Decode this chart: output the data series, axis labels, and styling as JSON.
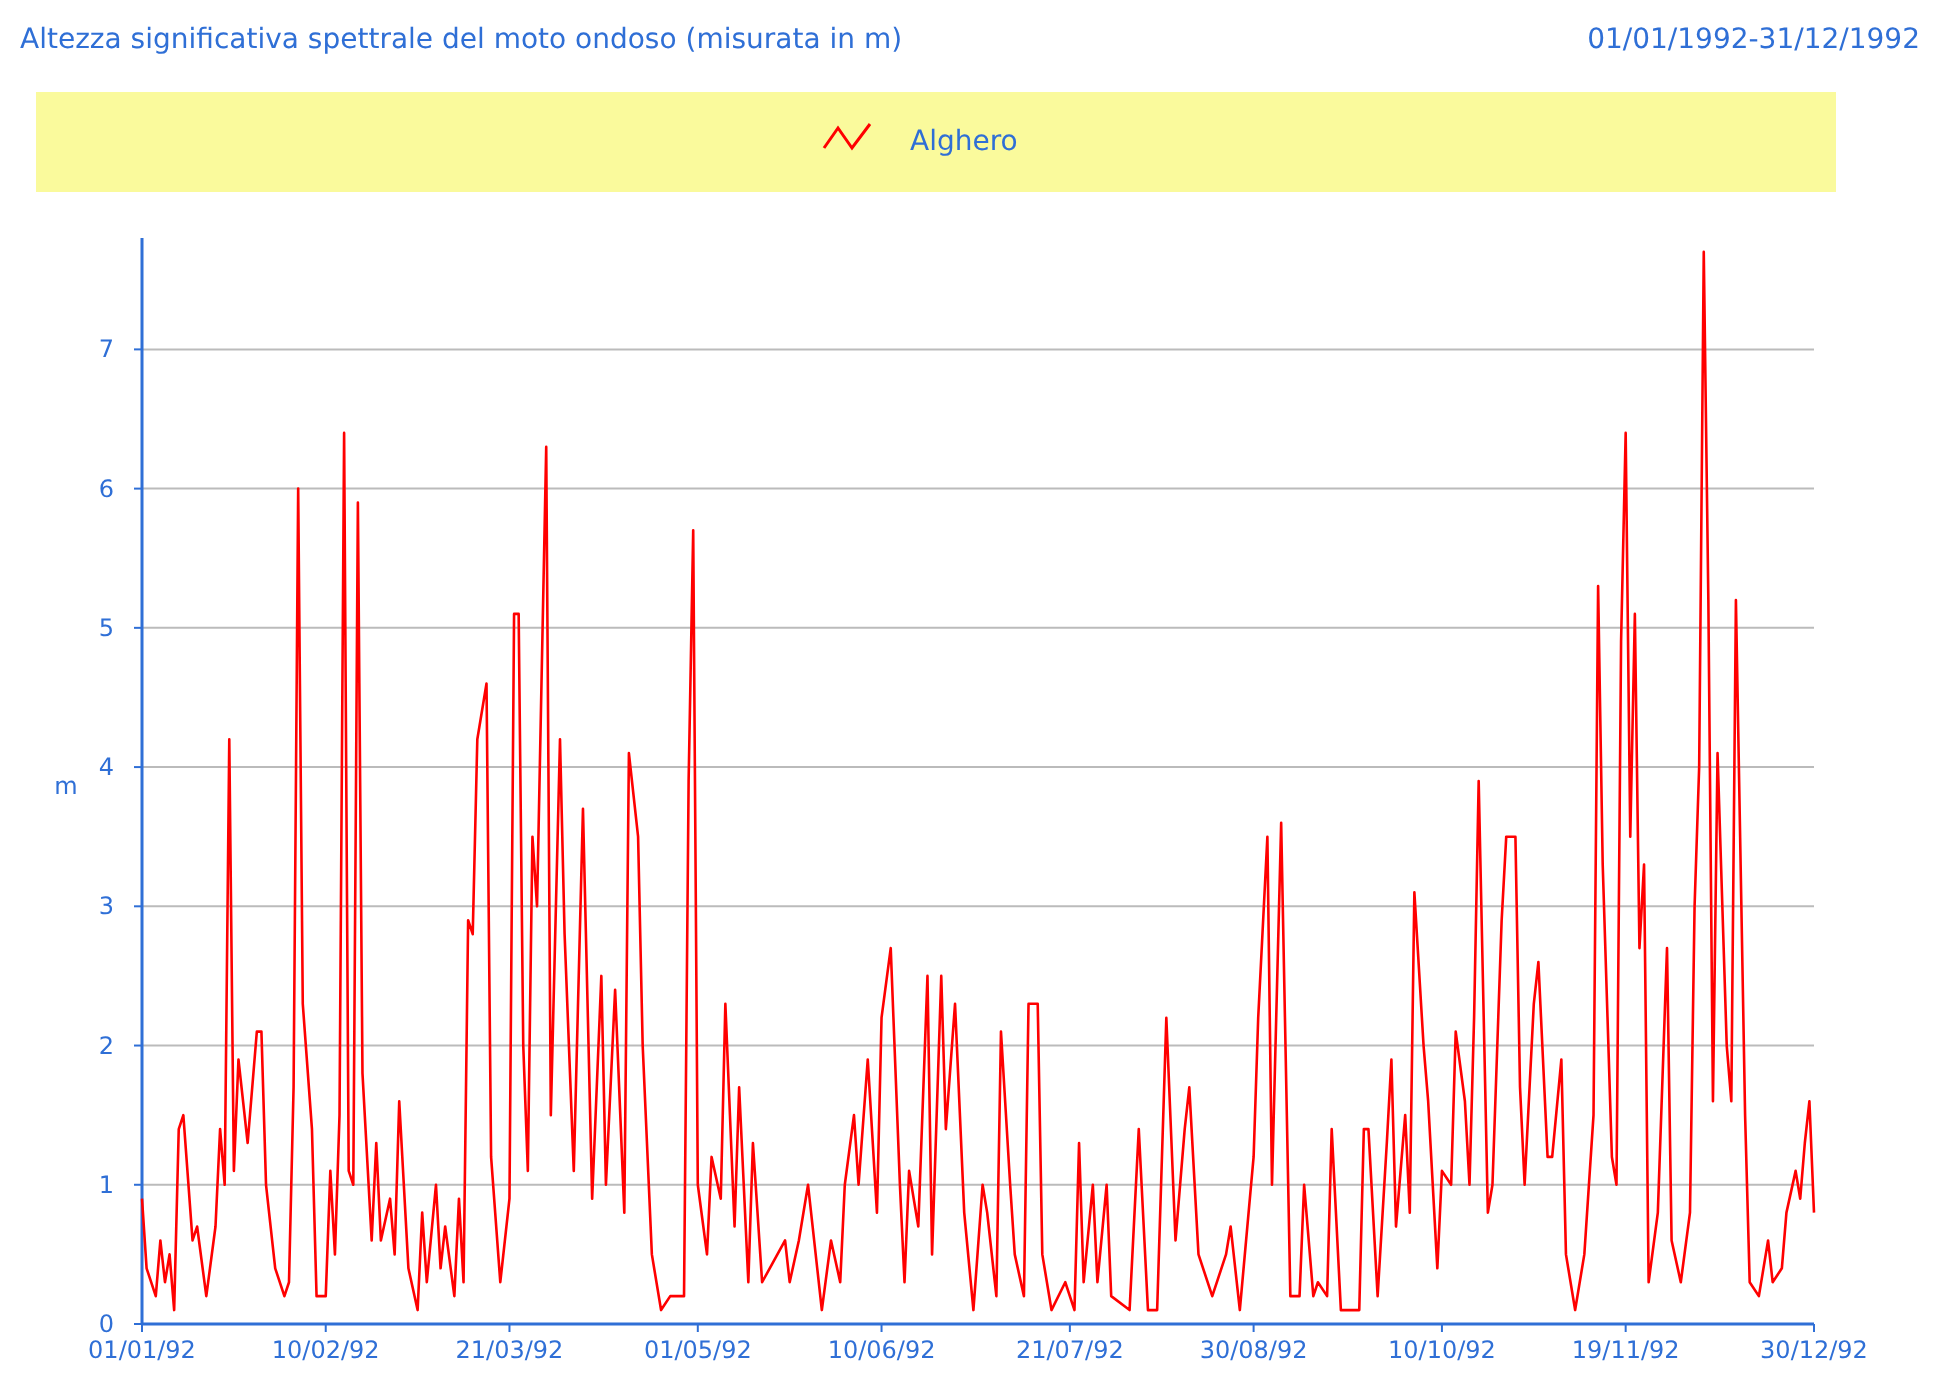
{
  "chart_data": {
    "type": "line",
    "title": "Altezza significativa spettrale del moto ondoso (misurata in m)",
    "subtitle": "01/01/1992-31/12/1992",
    "ylabel": "m",
    "xlim": [
      "1992-01-01",
      "1992-12-30"
    ],
    "xticks": [
      {
        "value": "1992-01-01",
        "label": "01/01/92"
      },
      {
        "value": "1992-02-10",
        "label": "10/02/92"
      },
      {
        "value": "1992-03-21",
        "label": "21/03/92"
      },
      {
        "value": "1992-05-01",
        "label": "01/05/92"
      },
      {
        "value": "1992-06-10",
        "label": "10/06/92"
      },
      {
        "value": "1992-07-21",
        "label": "21/07/92"
      },
      {
        "value": "1992-08-30",
        "label": "30/08/92"
      },
      {
        "value": "1992-10-10",
        "label": "10/10/92"
      },
      {
        "value": "1992-11-19",
        "label": "19/11/92"
      },
      {
        "value": "1992-12-30",
        "label": "30/12/92"
      }
    ],
    "ylim": [
      0,
      7.8
    ],
    "yticks": [
      0,
      1,
      2,
      3,
      4,
      5,
      6,
      7
    ],
    "grid": "y",
    "legend": "top",
    "marker": "none",
    "line_style": "solid",
    "x": [
      "1992-01-01",
      "1992-01-02",
      "1992-01-04",
      "1992-01-05",
      "1992-01-06",
      "1992-01-07",
      "1992-01-08",
      "1992-01-09",
      "1992-01-10",
      "1992-01-12",
      "1992-01-13",
      "1992-01-15",
      "1992-01-17",
      "1992-01-18",
      "1992-01-19",
      "1992-01-20",
      "1992-01-21",
      "1992-01-22",
      "1992-01-24",
      "1992-01-26",
      "1992-01-27",
      "1992-01-28",
      "1992-01-30",
      "1992-02-01",
      "1992-02-02",
      "1992-02-03",
      "1992-02-04",
      "1992-02-05",
      "1992-02-07",
      "1992-02-08",
      "1992-02-10",
      "1992-02-11",
      "1992-02-12",
      "1992-02-13",
      "1992-02-14",
      "1992-02-15",
      "1992-02-16",
      "1992-02-17",
      "1992-02-18",
      "1992-02-20",
      "1992-02-21",
      "1992-02-22",
      "1992-02-24",
      "1992-02-25",
      "1992-02-26",
      "1992-02-28",
      "1992-03-01",
      "1992-03-02",
      "1992-03-03",
      "1992-03-05",
      "1992-03-06",
      "1992-03-07",
      "1992-03-09",
      "1992-03-10",
      "1992-03-11",
      "1992-03-12",
      "1992-03-13",
      "1992-03-14",
      "1992-03-16",
      "1992-03-17",
      "1992-03-19",
      "1992-03-21",
      "1992-03-22",
      "1992-03-23",
      "1992-03-24",
      "1992-03-25",
      "1992-03-26",
      "1992-03-27",
      "1992-03-29",
      "1992-03-30",
      "1992-04-01",
      "1992-04-02",
      "1992-04-04",
      "1992-04-06",
      "1992-04-08",
      "1992-04-10",
      "1992-04-11",
      "1992-04-13",
      "1992-04-15",
      "1992-04-16",
      "1992-04-18",
      "1992-04-19",
      "1992-04-21",
      "1992-04-23",
      "1992-04-25",
      "1992-04-28",
      "1992-04-29",
      "1992-04-30",
      "1992-05-01",
      "1992-05-03",
      "1992-05-04",
      "1992-05-06",
      "1992-05-07",
      "1992-05-09",
      "1992-05-10",
      "1992-05-12",
      "1992-05-13",
      "1992-05-15",
      "1992-05-20",
      "1992-05-21",
      "1992-05-23",
      "1992-05-25",
      "1992-05-27",
      "1992-05-28",
      "1992-05-30",
      "1992-06-01",
      "1992-06-02",
      "1992-06-04",
      "1992-06-05",
      "1992-06-07",
      "1992-06-09",
      "1992-06-10",
      "1992-06-12",
      "1992-06-14",
      "1992-06-15",
      "1992-06-16",
      "1992-06-18",
      "1992-06-20",
      "1992-06-21",
      "1992-06-23",
      "1992-06-24",
      "1992-06-26",
      "1992-06-28",
      "1992-06-30",
      "1992-07-02",
      "1992-07-03",
      "1992-07-05",
      "1992-07-06",
      "1992-07-08",
      "1992-07-09",
      "1992-07-11",
      "1992-07-12",
      "1992-07-14",
      "1992-07-15",
      "1992-07-17",
      "1992-07-20",
      "1992-07-22",
      "1992-07-23",
      "1992-07-24",
      "1992-07-26",
      "1992-07-27",
      "1992-07-29",
      "1992-07-30",
      "1992-08-03",
      "1992-08-05",
      "1992-08-07",
      "1992-08-09",
      "1992-08-11",
      "1992-08-13",
      "1992-08-15",
      "1992-08-16",
      "1992-08-18",
      "1992-08-21",
      "1992-08-24",
      "1992-08-25",
      "1992-08-27",
      "1992-08-30",
      "1992-08-31",
      "1992-09-02",
      "1992-09-03",
      "1992-09-05",
      "1992-09-07",
      "1992-09-09",
      "1992-09-10",
      "1992-09-12",
      "1992-09-13",
      "1992-09-15",
      "1992-09-16",
      "1992-09-18",
      "1992-09-20",
      "1992-09-22",
      "1992-09-23",
      "1992-09-24",
      "1992-09-26",
      "1992-09-28",
      "1992-09-29",
      "1992-09-30",
      "1992-10-02",
      "1992-10-03",
      "1992-10-04",
      "1992-10-06",
      "1992-10-07",
      "1992-10-09",
      "1992-10-10",
      "1992-10-12",
      "1992-10-13",
      "1992-10-15",
      "1992-10-16",
      "1992-10-17",
      "1992-10-18",
      "1992-10-20",
      "1992-10-21",
      "1992-10-23",
      "1992-10-24",
      "1992-10-26",
      "1992-10-27",
      "1992-10-28",
      "1992-10-30",
      "1992-10-31",
      "1992-11-02",
      "1992-11-03",
      "1992-11-05",
      "1992-11-06",
      "1992-11-08",
      "1992-11-10",
      "1992-11-12",
      "1992-11-13",
      "1992-11-14",
      "1992-11-16",
      "1992-11-17",
      "1992-11-18",
      "1992-11-19",
      "1992-11-20",
      "1992-11-21",
      "1992-11-22",
      "1992-11-23",
      "1992-11-24",
      "1992-11-26",
      "1992-11-28",
      "1992-11-29",
      "1992-12-01",
      "1992-12-03",
      "1992-12-04",
      "1992-12-05",
      "1992-12-06",
      "1992-12-07",
      "1992-12-08",
      "1992-12-09",
      "1992-12-11",
      "1992-12-12",
      "1992-12-13",
      "1992-12-15",
      "1992-12-16",
      "1992-12-18",
      "1992-12-20",
      "1992-12-21",
      "1992-12-23",
      "1992-12-24",
      "1992-12-26",
      "1992-12-27",
      "1992-12-28",
      "1992-12-29",
      "1992-12-30"
    ],
    "series": [
      {
        "name": "Alghero",
        "color": "#ff0000",
        "values": [
          0.9,
          0.4,
          0.2,
          0.6,
          0.3,
          0.5,
          0.1,
          1.4,
          1.5,
          0.6,
          0.7,
          0.2,
          0.7,
          1.4,
          1.0,
          4.2,
          1.1,
          1.9,
          1.3,
          2.1,
          2.1,
          1.0,
          0.4,
          0.2,
          0.3,
          1.7,
          6.0,
          2.3,
          1.4,
          0.2,
          0.2,
          1.1,
          0.5,
          1.5,
          6.4,
          1.1,
          1.0,
          5.9,
          1.8,
          0.6,
          1.3,
          0.6,
          0.9,
          0.5,
          1.6,
          0.4,
          0.1,
          0.8,
          0.3,
          1.0,
          0.4,
          0.7,
          0.2,
          0.9,
          0.3,
          2.9,
          2.8,
          4.2,
          4.6,
          1.2,
          0.3,
          0.9,
          5.1,
          5.1,
          2.0,
          1.1,
          3.5,
          3.0,
          6.3,
          1.5,
          4.2,
          2.8,
          1.1,
          3.7,
          0.9,
          2.5,
          1.0,
          2.4,
          0.8,
          4.1,
          3.5,
          2.0,
          0.5,
          0.1,
          0.2,
          0.2,
          3.9,
          5.7,
          1.0,
          0.5,
          1.2,
          0.9,
          2.3,
          0.7,
          1.7,
          0.3,
          1.3,
          0.3,
          0.6,
          0.3,
          0.6,
          1.0,
          0.4,
          0.1,
          0.6,
          0.3,
          1.0,
          1.5,
          1.0,
          1.9,
          0.8,
          2.2,
          2.7,
          1.0,
          0.3,
          1.1,
          0.7,
          2.5,
          0.5,
          2.5,
          1.4,
          2.3,
          0.8,
          0.1,
          1.0,
          0.8,
          0.2,
          2.1,
          1.0,
          0.5,
          0.2,
          2.3,
          2.3,
          0.5,
          0.1,
          0.3,
          0.1,
          1.3,
          0.3,
          1.0,
          0.3,
          1.0,
          0.2,
          0.1,
          1.4,
          0.1,
          0.1,
          2.2,
          0.6,
          1.4,
          1.7,
          0.5,
          0.2,
          0.5,
          0.7,
          0.1,
          1.2,
          2.2,
          3.5,
          1.0,
          3.6,
          0.2,
          0.2,
          1.0,
          0.2,
          0.3,
          0.2,
          1.4,
          0.1,
          0.1,
          0.1,
          1.4,
          1.4,
          0.2,
          1.3,
          1.9,
          0.7,
          1.5,
          0.8,
          3.1,
          2.0,
          1.6,
          0.4,
          1.1,
          1.0,
          2.1,
          1.6,
          1.0,
          2.2,
          3.9,
          0.8,
          1.0,
          2.9,
          3.5,
          3.5,
          1.7,
          1.0,
          2.3,
          2.6,
          1.2,
          1.2,
          1.9,
          0.5,
          0.1,
          0.5,
          1.5,
          5.3,
          3.3,
          1.2,
          1.0,
          4.9,
          6.4,
          3.5,
          5.1,
          2.7,
          3.3,
          0.3,
          0.8,
          2.7,
          0.6,
          0.3,
          0.8,
          3.0,
          4.0,
          7.7,
          5.2,
          1.6,
          4.1,
          2.0,
          1.6,
          5.2,
          1.5,
          0.3,
          0.2,
          0.6,
          0.3,
          0.4,
          0.8,
          1.1,
          0.9,
          1.3,
          1.6,
          0.8
        ]
      }
    ]
  }
}
